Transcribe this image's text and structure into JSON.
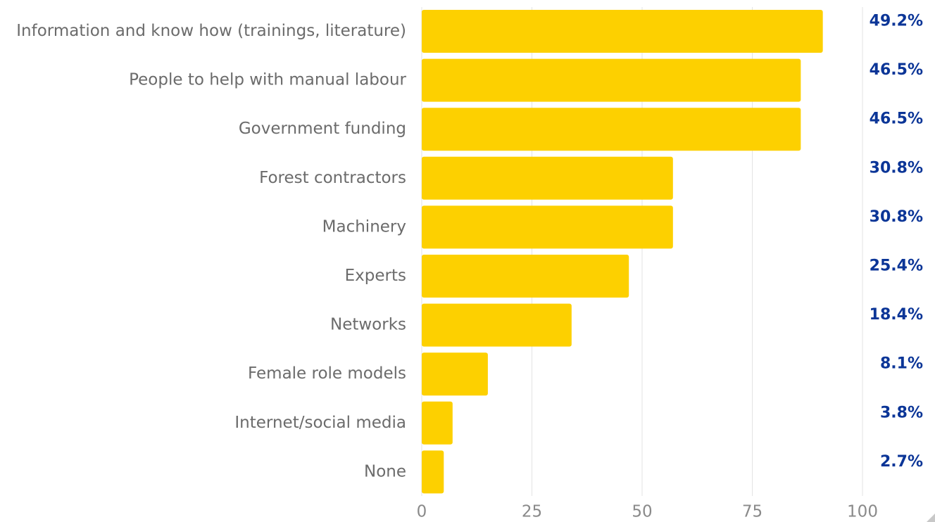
{
  "chart_data": {
    "type": "bar",
    "orientation": "horizontal",
    "categories": [
      "Information and know how (trainings, literature)",
      "People to help with manual labour",
      "Government funding",
      "Forest contractors",
      "Machinery",
      "Experts",
      "Networks",
      "Female role models",
      "Internet/social media",
      "None"
    ],
    "values": [
      91,
      86,
      86,
      57,
      57,
      47,
      34,
      15,
      7,
      5
    ],
    "share_labels": [
      "49.2%",
      "46.5%",
      "46.5%",
      "30.8%",
      "30.8%",
      "25.4%",
      "18.4%",
      "8.1%",
      "3.8%",
      "2.7%"
    ],
    "color": "#fdd000",
    "xlim": [
      0,
      100
    ],
    "xticks": [
      0,
      25,
      50,
      75,
      100
    ],
    "grid": true
  }
}
